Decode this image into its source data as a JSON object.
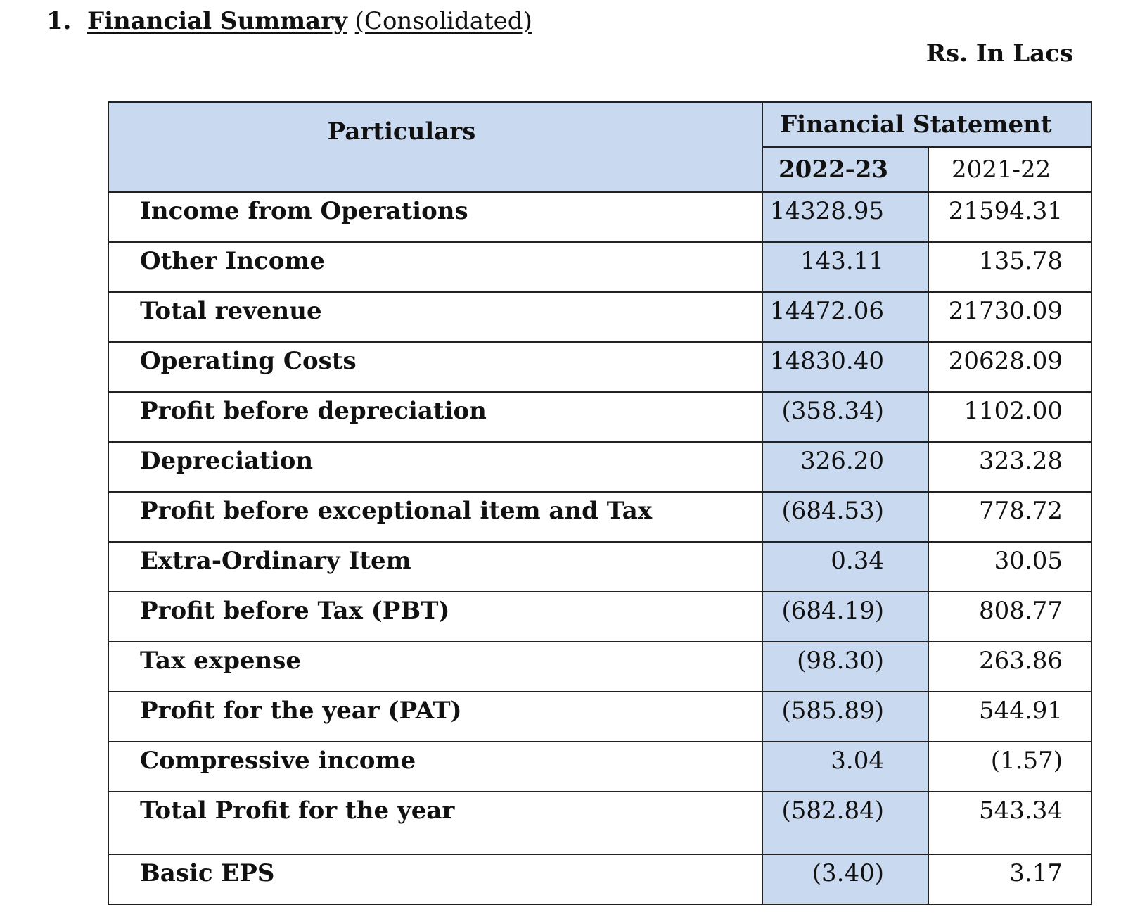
{
  "heading": {
    "number": "1.",
    "title": "Financial Summary",
    "subtitle": "(Consolidated)"
  },
  "units": "Rs. In Lacs",
  "table": {
    "header": {
      "particulars": "Particulars",
      "group": "Financial Statement",
      "year1": "2022-23",
      "year2": "2021-22"
    },
    "rows": [
      {
        "label": "Income from Operations",
        "y1": "14328.95",
        "y2": "21594.31"
      },
      {
        "label": "Other Income",
        "y1": "143.11",
        "y2": "135.78"
      },
      {
        "label": "Total revenue",
        "y1": "14472.06",
        "y2": "21730.09"
      },
      {
        "label": "Operating Costs",
        "y1": "14830.40",
        "y2": "20628.09"
      },
      {
        "label": "Profit before depreciation",
        "y1": "(358.34)",
        "y2": "1102.00"
      },
      {
        "label": "Depreciation",
        "y1": "326.20",
        "y2": "323.28"
      },
      {
        "label": "Profit before exceptional item and Tax",
        "y1": "(684.53)",
        "y2": "778.72"
      },
      {
        "label": "Extra-Ordinary Item",
        "y1": "0.34",
        "y2": "30.05"
      },
      {
        "label": "Profit before Tax (PBT)",
        "y1": "(684.19)",
        "y2": "808.77"
      },
      {
        "label": "Tax expense",
        "y1": "(98.30)",
        "y2": "263.86"
      },
      {
        "label": "Profit for the year (PAT)",
        "y1": "(585.89)",
        "y2": "544.91"
      },
      {
        "label": "Compressive income",
        "y1": "3.04",
        "y2": "(1.57)"
      },
      {
        "label": "Total Profit for the year",
        "y1": "(582.84)",
        "y2": "543.34"
      },
      {
        "label": "Basic EPS",
        "y1": "(3.40)",
        "y2": "3.17"
      }
    ]
  },
  "colors": {
    "header_fill": "#c9d9ef",
    "border": "#222222"
  }
}
